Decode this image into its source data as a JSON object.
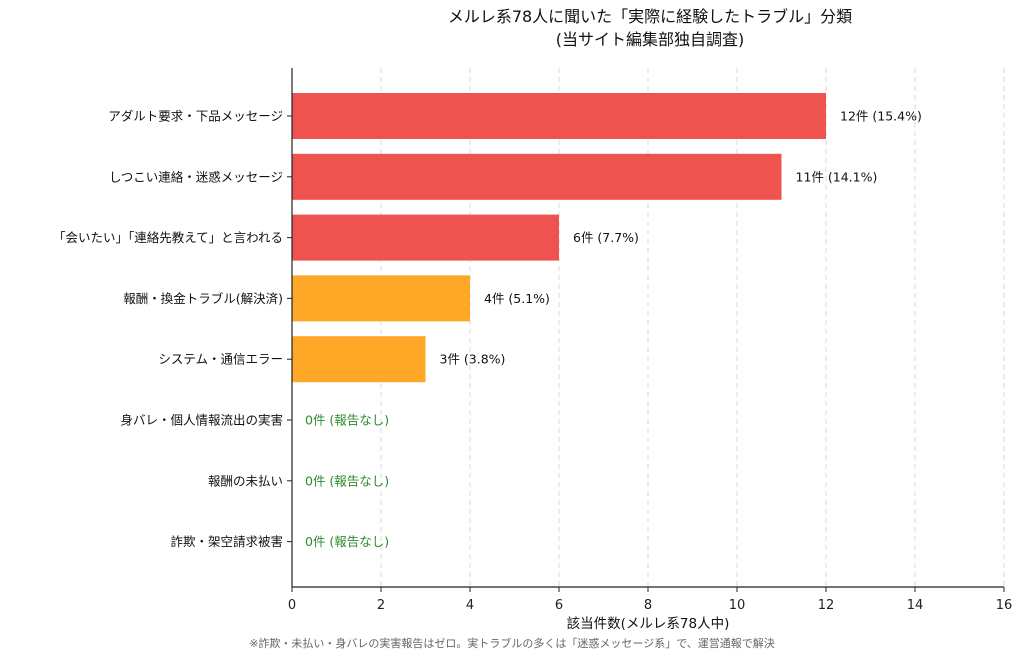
{
  "title_line1": "メルレ系78人に聞いた「実際に経験したトラブル」分類",
  "title_line2": "(当サイト編集部独自調査)",
  "footnote": "※詐欺・未払い・身バレの実害報告はゼロ。実トラブルの多くは「迷惑メッセージ系」で、運営通報で解決",
  "colors": {
    "red": "#ef5350",
    "orange": "#ffa726",
    "zero_text": "#2e8b2e"
  },
  "chart_data": {
    "type": "bar",
    "orientation": "horizontal",
    "categories": [
      "アダルト要求・下品メッセージ",
      "しつこい連絡・迷惑メッセージ",
      "「会いたい」「連絡先教えて」と言われる",
      "報酬・換金トラブル(解決済)",
      "システム・通信エラー",
      "身バレ・個人情報流出の実害",
      "報酬の未払い",
      "詐欺・架空請求被害"
    ],
    "values": [
      12,
      11,
      6,
      4,
      3,
      0,
      0,
      0
    ],
    "labels": [
      "12件 (15.4%)",
      "11件 (14.1%)",
      "6件 (7.7%)",
      "4件 (5.1%)",
      "3件 (3.8%)",
      "0件 (報告なし)",
      "0件 (報告なし)",
      "0件 (報告なし)"
    ],
    "bar_colors": [
      "#ef5350",
      "#ef5350",
      "#ef5350",
      "#ffa726",
      "#ffa726",
      "#cccccc",
      "#cccccc",
      "#cccccc"
    ],
    "xlabel": "該当件数(メルレ系78人中)",
    "ylabel": "",
    "xlim": [
      0,
      16
    ],
    "xticks": [
      0,
      2,
      4,
      6,
      8,
      10,
      12,
      14,
      16
    ],
    "grid": "vertical dashed"
  }
}
